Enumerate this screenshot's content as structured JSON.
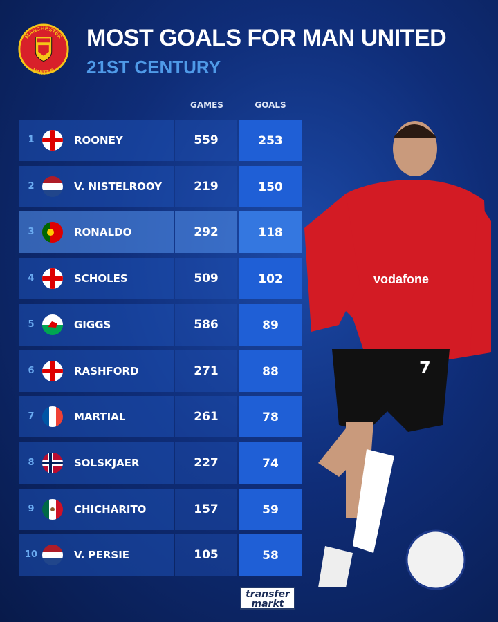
{
  "header": {
    "title": "MOST GOALS FOR MAN UNITED",
    "subtitle": "21ST CENTURY",
    "crest_text_top": "MANCHESTER",
    "crest_text_bottom": "UNITED"
  },
  "columns": {
    "games": "GAMES",
    "goals": "GOALS"
  },
  "highlighted_rank": 3,
  "colors": {
    "background": "#0f2d78",
    "goals_column": "#1f5fd6",
    "subtitle": "#4f9ae8",
    "rank": "#6aaaf0"
  },
  "chart_data": {
    "type": "table",
    "title": "MOST GOALS FOR MAN UNITED",
    "subtitle": "21ST CENTURY",
    "columns": [
      "",
      "",
      "",
      "GAMES",
      "GOALS"
    ],
    "rows": [
      {
        "rank": "1",
        "flag": "england",
        "name": "ROONEY",
        "games": "559",
        "goals": "253"
      },
      {
        "rank": "2",
        "flag": "netherlands",
        "name": "V. NISTELROOY",
        "games": "219",
        "goals": "150"
      },
      {
        "rank": "3",
        "flag": "portugal",
        "name": "RONALDO",
        "games": "292",
        "goals": "118"
      },
      {
        "rank": "4",
        "flag": "england",
        "name": "SCHOLES",
        "games": "509",
        "goals": "102"
      },
      {
        "rank": "5",
        "flag": "wales",
        "name": "GIGGS",
        "games": "586",
        "goals": "89"
      },
      {
        "rank": "6",
        "flag": "england",
        "name": "RASHFORD",
        "games": "271",
        "goals": "88"
      },
      {
        "rank": "7",
        "flag": "france",
        "name": "MARTIAL",
        "games": "261",
        "goals": "78"
      },
      {
        "rank": "8",
        "flag": "norway",
        "name": "SOLSKJAER",
        "games": "227",
        "goals": "74"
      },
      {
        "rank": "9",
        "flag": "mexico",
        "name": "CHICHARITO",
        "games": "157",
        "goals": "59"
      },
      {
        "rank": "10",
        "flag": "netherlands",
        "name": "V. PERSIE",
        "games": "105",
        "goals": "58"
      }
    ]
  },
  "player_photo": {
    "shirt_sponsor": "vodafone",
    "shirt_number": "7"
  },
  "footer": {
    "logo_line1": "transfer",
    "logo_line2": "markt"
  }
}
